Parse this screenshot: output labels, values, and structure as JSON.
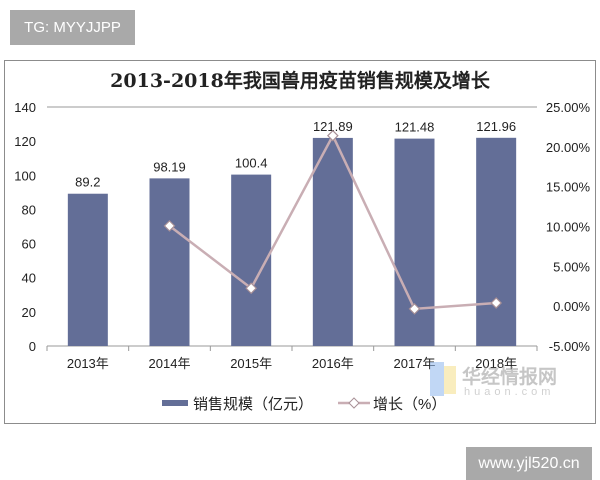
{
  "overlays": {
    "top_left": "TG: MYYJJPP",
    "bottom_right": "www.yjl520.cn"
  },
  "watermark": {
    "cn": "华经情报网",
    "en": "huaon.com"
  },
  "chart_data": {
    "type": "bar+line",
    "title": "2013-2018年我国兽用疫苗销售规模及增长",
    "categories": [
      "2013年",
      "2014年",
      "2015年",
      "2016年",
      "2017年",
      "2018年"
    ],
    "series": [
      {
        "name": "销售规模（亿元）",
        "type": "bar",
        "axis": "left",
        "color": "#636e97",
        "values": [
          89.2,
          98.19,
          100.4,
          121.89,
          121.48,
          121.96
        ],
        "labels": [
          "89.2",
          "98.19",
          "100.4",
          "121.89",
          "121.48",
          "121.96"
        ]
      },
      {
        "name": "增长（%）",
        "type": "line",
        "axis": "right",
        "color": "#c9aeb4",
        "marker": "diamond",
        "values": [
          null,
          10.08,
          2.25,
          21.4,
          -0.34,
          0.4
        ]
      }
    ],
    "left_axis": {
      "ylim": [
        0,
        140
      ],
      "ticks": [
        "0",
        "20",
        "40",
        "60",
        "80",
        "100",
        "120",
        "140"
      ]
    },
    "right_axis": {
      "ylim": [
        -5,
        25
      ],
      "ticks": [
        "-5.00%",
        "0.00%",
        "5.00%",
        "10.00%",
        "15.00%",
        "20.00%",
        "25.00%"
      ]
    },
    "grid": false,
    "legend": "bottom"
  }
}
